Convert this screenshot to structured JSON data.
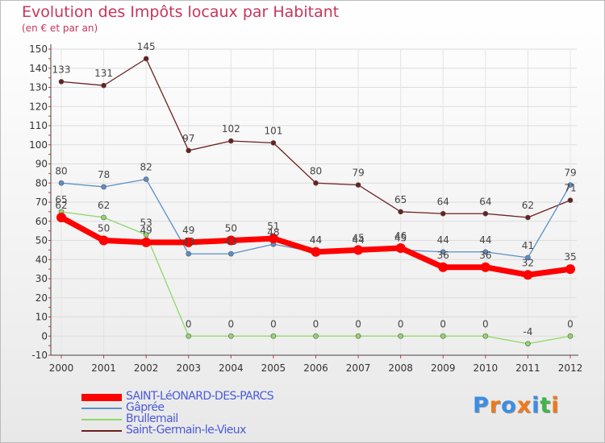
{
  "chart_data": {
    "type": "line",
    "title": "Evolution des Impôts locaux par Habitant",
    "subtitle": "(en € et par an)",
    "xlabel": "",
    "ylabel": "",
    "x": [
      "2000",
      "2001",
      "2002",
      "2003",
      "2004",
      "2005",
      "2006",
      "2007",
      "2008",
      "2009",
      "2010",
      "2011",
      "2012"
    ],
    "yticks": [
      "-10",
      "0",
      "10",
      "20",
      "30",
      "40",
      "50",
      "60",
      "70",
      "80",
      "90",
      "100",
      "110",
      "120",
      "130",
      "140",
      "150"
    ],
    "ylim": [
      -10,
      150
    ],
    "series": [
      {
        "name": "SAINT-LéONARD-DES-PARCS",
        "color": "#ff0000",
        "values": [
          62,
          50,
          49,
          49,
          50,
          51,
          44,
          45,
          46,
          36,
          36,
          32,
          35
        ],
        "labels": [
          "62",
          "50",
          "49",
          "49",
          "50",
          "51",
          "44",
          "45",
          "46",
          "36",
          "36",
          "32",
          "35"
        ]
      },
      {
        "name": "Gâprée",
        "color": "#5b8fc7",
        "values": [
          80,
          78,
          82,
          43,
          43,
          48,
          44,
          44,
          45,
          44,
          44,
          41,
          79
        ],
        "labels": [
          "80",
          "78",
          "82",
          "43",
          "43",
          "48",
          "44",
          "44",
          "45",
          "44",
          "44",
          "41",
          "79"
        ]
      },
      {
        "name": "Brullemail",
        "color": "#8fd86a",
        "values": [
          65,
          62,
          53,
          0,
          0,
          0,
          0,
          0,
          0,
          0,
          0,
          -4,
          0
        ],
        "labels": [
          "65",
          "62",
          "53",
          "0",
          "0",
          "0",
          "0",
          "0",
          "0",
          "0",
          "0",
          "-4",
          "0"
        ]
      },
      {
        "name": "Saint-Germain-le-Vieux",
        "color": "#6b1f1f",
        "values": [
          133,
          131,
          145,
          97,
          102,
          101,
          80,
          79,
          65,
          64,
          64,
          62,
          71
        ],
        "labels": [
          "133",
          "131",
          "145",
          "97",
          "102",
          "101",
          "80",
          "79",
          "65",
          "64",
          "64",
          "62",
          "71"
        ]
      }
    ]
  },
  "logo": {
    "letters": [
      "P",
      "r",
      "o",
      "x",
      "i",
      "t",
      "i"
    ],
    "colors": [
      "#3a8ee6",
      "#f07a1a",
      "#3a8ee6",
      "#f07a1a",
      "#3a8ee6",
      "#3fb54a",
      "#f07a1a"
    ]
  }
}
